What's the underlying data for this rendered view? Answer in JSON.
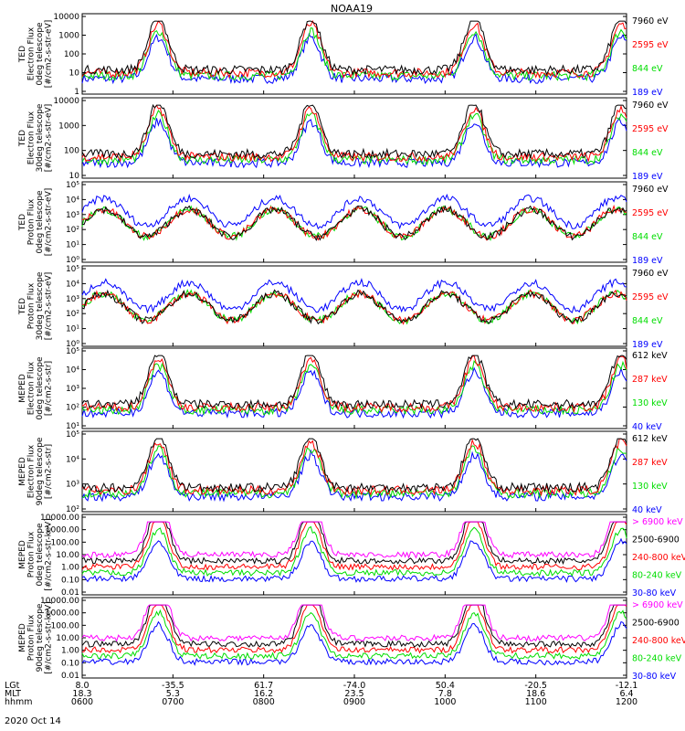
{
  "title": "NOAA19",
  "date": "2020 Oct 14",
  "x_axis": {
    "rows": [
      {
        "label": "LGt",
        "values": [
          "8.0",
          "-35.5",
          "61.7",
          "-74.0",
          "50.4",
          "-20.5",
          "-12.1"
        ]
      },
      {
        "label": "MLT",
        "values": [
          "18.3",
          "5.3",
          "16.2",
          "23.5",
          "7.8",
          "18.6",
          "6.4"
        ]
      },
      {
        "label": "hhmm",
        "values": [
          "0600",
          "0700",
          "0800",
          "0900",
          "1000",
          "1100",
          "1200"
        ]
      }
    ]
  },
  "colors": {
    "black": "#000000",
    "red": "#ff0000",
    "green": "#00dd00",
    "blue": "#0000ff",
    "magenta": "#ff00ff"
  },
  "chart_data": [
    {
      "type": "line",
      "ylabel": [
        "TED",
        "Electron Flux",
        "0deg telescope",
        "[#/cm2-s-str-eV]"
      ],
      "yticks": [
        "10000",
        "1000",
        "100",
        "10",
        "1"
      ],
      "legend": [
        {
          "name": "7960 eV",
          "color": "black"
        },
        {
          "name": "2595 eV",
          "color": "red"
        },
        {
          "name": "844 eV",
          "color": "green"
        },
        {
          "name": "189 eV",
          "color": "blue"
        }
      ],
      "x": [
        "0600",
        "0700",
        "0800",
        "0900",
        "1000",
        "1100",
        "1200"
      ]
    },
    {
      "type": "line",
      "ylabel": [
        "TED",
        "Electron Flux",
        "30deg telescope",
        "[#/cm2-s-str-eV]"
      ],
      "yticks": [
        "10000",
        "1000",
        "100",
        "10"
      ],
      "legend": [
        {
          "name": "7960 eV",
          "color": "black"
        },
        {
          "name": "2595 eV",
          "color": "red"
        },
        {
          "name": "844 eV",
          "color": "green"
        },
        {
          "name": "189 eV",
          "color": "blue"
        }
      ],
      "x": [
        "0600",
        "0700",
        "0800",
        "0900",
        "1000",
        "1100",
        "1200"
      ]
    },
    {
      "type": "line",
      "ylabel": [
        "TED",
        "Proton Flux",
        "0deg telescope",
        "[#/cm2-s-str-eV]"
      ],
      "yticks": [
        "10⁵",
        "10⁴",
        "10³",
        "10²",
        "10¹",
        "10⁰"
      ],
      "legend": [
        {
          "name": "7960 eV",
          "color": "black"
        },
        {
          "name": "2595 eV",
          "color": "red"
        },
        {
          "name": "844 eV",
          "color": "green"
        },
        {
          "name": "189 eV",
          "color": "blue"
        }
      ],
      "x": [
        "0600",
        "0700",
        "0800",
        "0900",
        "1000",
        "1100",
        "1200"
      ]
    },
    {
      "type": "line",
      "ylabel": [
        "TED",
        "Proton Flux",
        "30deg telescope",
        "[#/cm2-s-str-eV]"
      ],
      "yticks": [
        "10⁵",
        "10⁴",
        "10³",
        "10²",
        "10¹",
        "10⁰"
      ],
      "legend": [
        {
          "name": "7960 eV",
          "color": "black"
        },
        {
          "name": "2595 eV",
          "color": "red"
        },
        {
          "name": "844 eV",
          "color": "green"
        },
        {
          "name": "189 eV",
          "color": "blue"
        }
      ],
      "x": [
        "0600",
        "0700",
        "0800",
        "0900",
        "1000",
        "1100",
        "1200"
      ]
    },
    {
      "type": "line",
      "ylabel": [
        "MEPED",
        "Electron Flux",
        "0deg telescope",
        "[#/cm2-s-str]"
      ],
      "yticks": [
        "10⁵",
        "10⁴",
        "10³",
        "10²",
        "10¹"
      ],
      "legend": [
        {
          "name": "612 keV",
          "color": "black"
        },
        {
          "name": "287 keV",
          "color": "red"
        },
        {
          "name": "130 keV",
          "color": "green"
        },
        {
          "name": "40 keV",
          "color": "blue"
        }
      ],
      "x": [
        "0600",
        "0700",
        "0800",
        "0900",
        "1000",
        "1100",
        "1200"
      ]
    },
    {
      "type": "line",
      "ylabel": [
        "MEPED",
        "Electron Flux",
        "90deg telescope",
        "[#/cm2-s-str]"
      ],
      "yticks": [
        "10⁵",
        "10⁴",
        "10³",
        "10²"
      ],
      "legend": [
        {
          "name": "612 keV",
          "color": "black"
        },
        {
          "name": "287 keV",
          "color": "red"
        },
        {
          "name": "130 keV",
          "color": "green"
        },
        {
          "name": "40 keV",
          "color": "blue"
        }
      ],
      "x": [
        "0600",
        "0700",
        "0800",
        "0900",
        "1000",
        "1100",
        "1200"
      ]
    },
    {
      "type": "line",
      "ylabel": [
        "MEPED",
        "Proton Flux",
        "0deg telescope",
        "[#/cm2-s-str-keV]"
      ],
      "yticks": [
        "10000.00",
        "1000.00",
        "100.00",
        "10.00",
        "1.00",
        "0.10",
        "0.01"
      ],
      "legend": [
        {
          "name": "> 6900 keV",
          "color": "magenta"
        },
        {
          "name": "2500-6900",
          "color": "black"
        },
        {
          "name": "240-800 keV",
          "color": "red"
        },
        {
          "name": "80-240 keV",
          "color": "green"
        },
        {
          "name": "30-80 keV",
          "color": "blue"
        }
      ],
      "x": [
        "0600",
        "0700",
        "0800",
        "0900",
        "1000",
        "1100",
        "1200"
      ]
    },
    {
      "type": "line",
      "ylabel": [
        "MEPED",
        "Proton Flux",
        "90deg telescope",
        "[#/cm2-s-str-keV]"
      ],
      "yticks": [
        "10000.00",
        "1000.00",
        "100.00",
        "10.00",
        "1.00",
        "0.10",
        "0.01"
      ],
      "legend": [
        {
          "name": "> 6900 keV",
          "color": "magenta"
        },
        {
          "name": "2500-6900",
          "color": "black"
        },
        {
          "name": "240-800 keV",
          "color": "red"
        },
        {
          "name": "80-240 keV",
          "color": "green"
        },
        {
          "name": "30-80 keV",
          "color": "blue"
        }
      ],
      "x": [
        "0600",
        "0700",
        "0800",
        "0900",
        "1000",
        "1100",
        "1200"
      ]
    }
  ]
}
